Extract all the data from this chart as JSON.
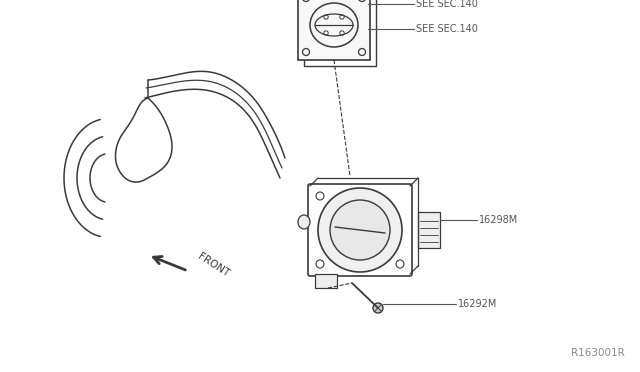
{
  "background_color": "#ffffff",
  "fig_width": 6.4,
  "fig_height": 3.72,
  "ref_code": "R163001R",
  "labels": {
    "see_sec140_top": "SEE SEC.140",
    "see_sec140_bot": "SEE SEC.140",
    "part_16298M": "16298M",
    "part_16292M": "16292M",
    "front": "FRONT"
  },
  "line_color": "#3a3a3a",
  "text_color": "#3a3a3a",
  "ref_color": "#888888",
  "label_color": "#555555"
}
